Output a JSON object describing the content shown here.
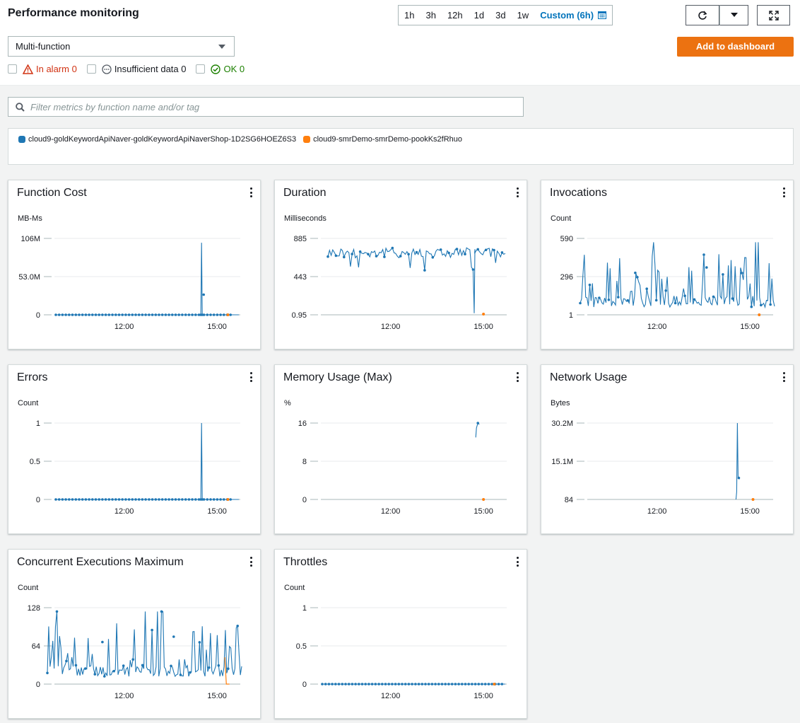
{
  "header": {
    "title": "Performance monitoring",
    "time_ranges": [
      "1h",
      "3h",
      "12h",
      "1d",
      "3d",
      "1w"
    ],
    "custom_label": "Custom (6h)"
  },
  "controls": {
    "select_value": "Multi-function",
    "add_to_dashboard": "Add to dashboard",
    "filter_placeholder": "Filter metrics by function name and/or tag"
  },
  "alarms": {
    "in_alarm": "In alarm 0",
    "insufficient": "Insufficient data 0",
    "ok": "OK 0"
  },
  "colors": {
    "blue": "#1f77b4",
    "orange": "#ff7f0e",
    "accent": "#ec7211",
    "link": "#0073bb"
  },
  "legend": [
    {
      "name": "cloud9-goldKeywordApiNaver-goldKeywordApiNaverShop-1D2SG6HOEZ6S3",
      "color": "#1f77b4"
    },
    {
      "name": "cloud9-smrDemo-smrDemo-pookKs2fRhuo",
      "color": "#ff7f0e"
    }
  ],
  "x_ticks": [
    "12:00",
    "15:00"
  ],
  "chart_data": [
    {
      "title": "Function Cost",
      "unit": "MB-Ms",
      "type": "line",
      "y_ticks": [
        "106M",
        "53.0M",
        "0"
      ],
      "ylim": [
        0,
        106000000
      ],
      "xlim": [
        "09:45",
        "15:45"
      ],
      "spike": {
        "x": "14:30",
        "y": 100000000
      }
    },
    {
      "title": "Duration",
      "unit": "Milliseconds",
      "type": "line",
      "y_ticks": [
        "885",
        "443",
        "0.95"
      ],
      "ylim": [
        0.95,
        885
      ],
      "xlim": [
        "09:45",
        "15:45"
      ],
      "spike": {
        "x": "14:40",
        "y": 0.95
      }
    },
    {
      "title": "Invocations",
      "unit": "Count",
      "type": "line",
      "y_ticks": [
        "590",
        "296",
        "1"
      ],
      "ylim": [
        1,
        590
      ],
      "xlim": [
        "09:45",
        "15:45"
      ]
    },
    {
      "title": "Errors",
      "unit": "Count",
      "type": "line",
      "y_ticks": [
        "1",
        "0.5",
        "0"
      ],
      "ylim": [
        0,
        1
      ],
      "xlim": [
        "09:45",
        "15:45"
      ],
      "spike": {
        "x": "14:25",
        "y": 1
      }
    },
    {
      "title": "Memory Usage (Max)",
      "unit": "%",
      "type": "line",
      "y_ticks": [
        "16",
        "8",
        "0"
      ],
      "ylim": [
        0,
        16
      ],
      "xlim": [
        "09:45",
        "15:45"
      ],
      "spike": {
        "x": "14:40",
        "y": 16
      }
    },
    {
      "title": "Network Usage",
      "unit": "Bytes",
      "type": "line",
      "y_ticks": [
        "30.2M",
        "15.1M",
        "84"
      ],
      "ylim": [
        84,
        30200000
      ],
      "xlim": [
        "09:45",
        "15:45"
      ],
      "spike": {
        "x": "14:30",
        "y": 30200000
      }
    },
    {
      "title": "Concurrent Executions Maximum",
      "unit": "Count",
      "type": "line",
      "y_ticks": [
        "128",
        "64",
        "0"
      ],
      "ylim": [
        0,
        128
      ],
      "xlim": [
        "09:45",
        "15:45"
      ]
    },
    {
      "title": "Throttles",
      "unit": "Count",
      "type": "line",
      "y_ticks": [
        "1",
        "0.5",
        "0"
      ],
      "ylim": [
        0,
        1
      ],
      "xlim": [
        "09:45",
        "15:45"
      ]
    }
  ]
}
